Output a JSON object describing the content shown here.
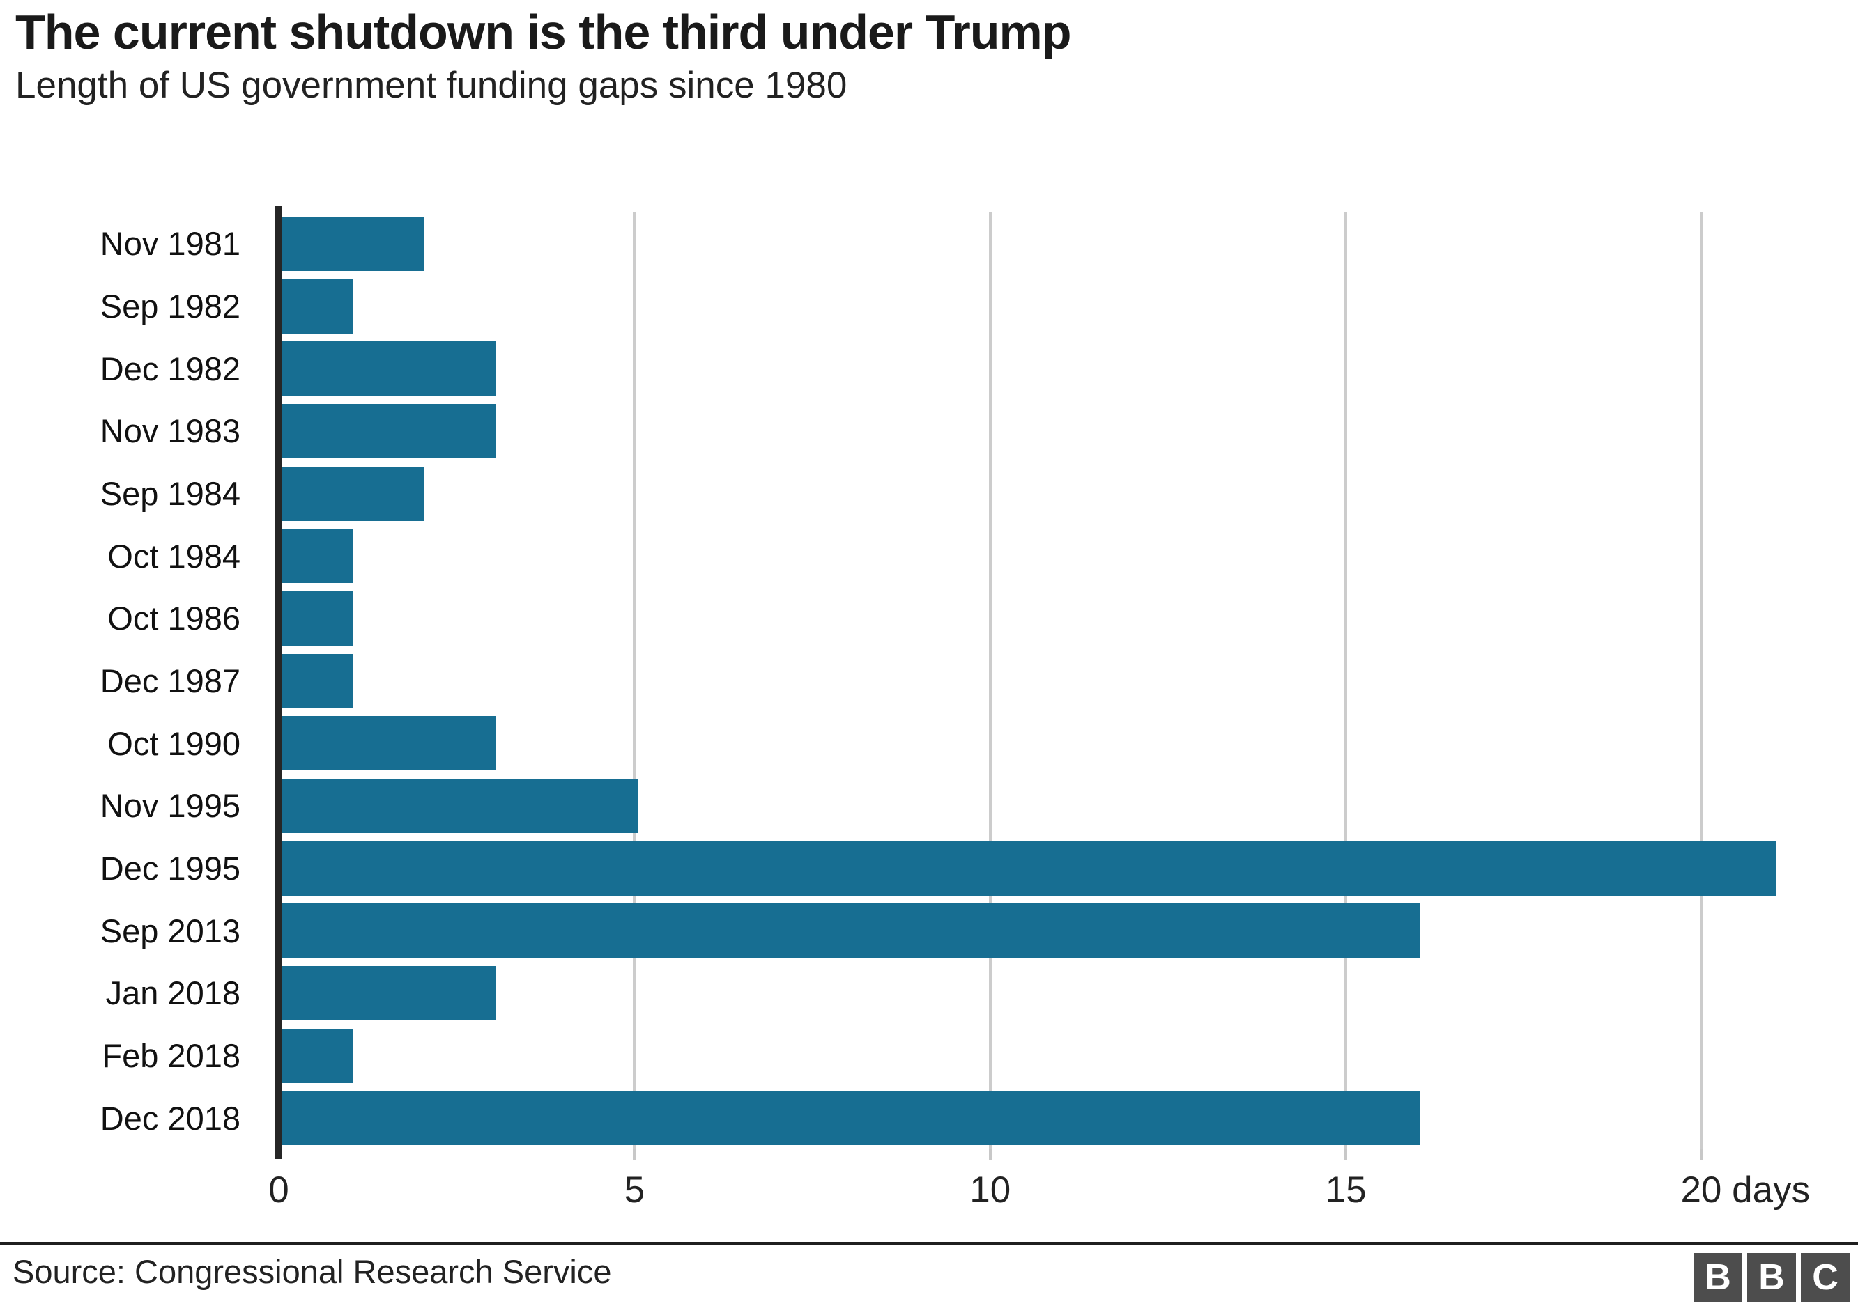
{
  "header": {
    "title": "The current shutdown is the third under Trump",
    "subtitle": "Length of US government funding gaps since 1980"
  },
  "footer": {
    "source": "Source: Congressional Research Service",
    "logo_letters": [
      "B",
      "B",
      "C"
    ]
  },
  "colors": {
    "bar": "#176e92",
    "axis_line": "#262626",
    "gridline": "#cccccc",
    "tick_mark": "#c8c8c8",
    "text": "#222222",
    "logo_bg": "#4d4d4d"
  },
  "chart_data": {
    "type": "bar",
    "orientation": "horizontal",
    "title": "The current shutdown is the third under Trump",
    "subtitle": "Length of US government funding gaps since 1980",
    "categories": [
      "Nov 1981",
      "Sep 1982",
      "Dec 1982",
      "Nov 1983",
      "Sep 1984",
      "Oct 1984",
      "Oct 1986",
      "Dec 1987",
      "Oct 1990",
      "Nov 1995",
      "Dec 1995",
      "Sep 2013",
      "Jan 2018",
      "Feb 2018",
      "Dec 2018"
    ],
    "values": [
      2,
      1,
      3,
      3,
      2,
      1,
      1,
      1,
      3,
      5,
      21,
      16,
      3,
      1,
      16
    ],
    "unit": "days",
    "xlabel": "days",
    "ylabel": "",
    "xlim": [
      0,
      22.2
    ],
    "x_ticks": [
      {
        "value": 0,
        "label": "0"
      },
      {
        "value": 5,
        "label": "5"
      },
      {
        "value": 10,
        "label": "10"
      },
      {
        "value": 15,
        "label": "15"
      },
      {
        "value": 20,
        "label": "20 days"
      }
    ],
    "grid": "vertical-gridlines-at-ticks",
    "legend": "none"
  }
}
